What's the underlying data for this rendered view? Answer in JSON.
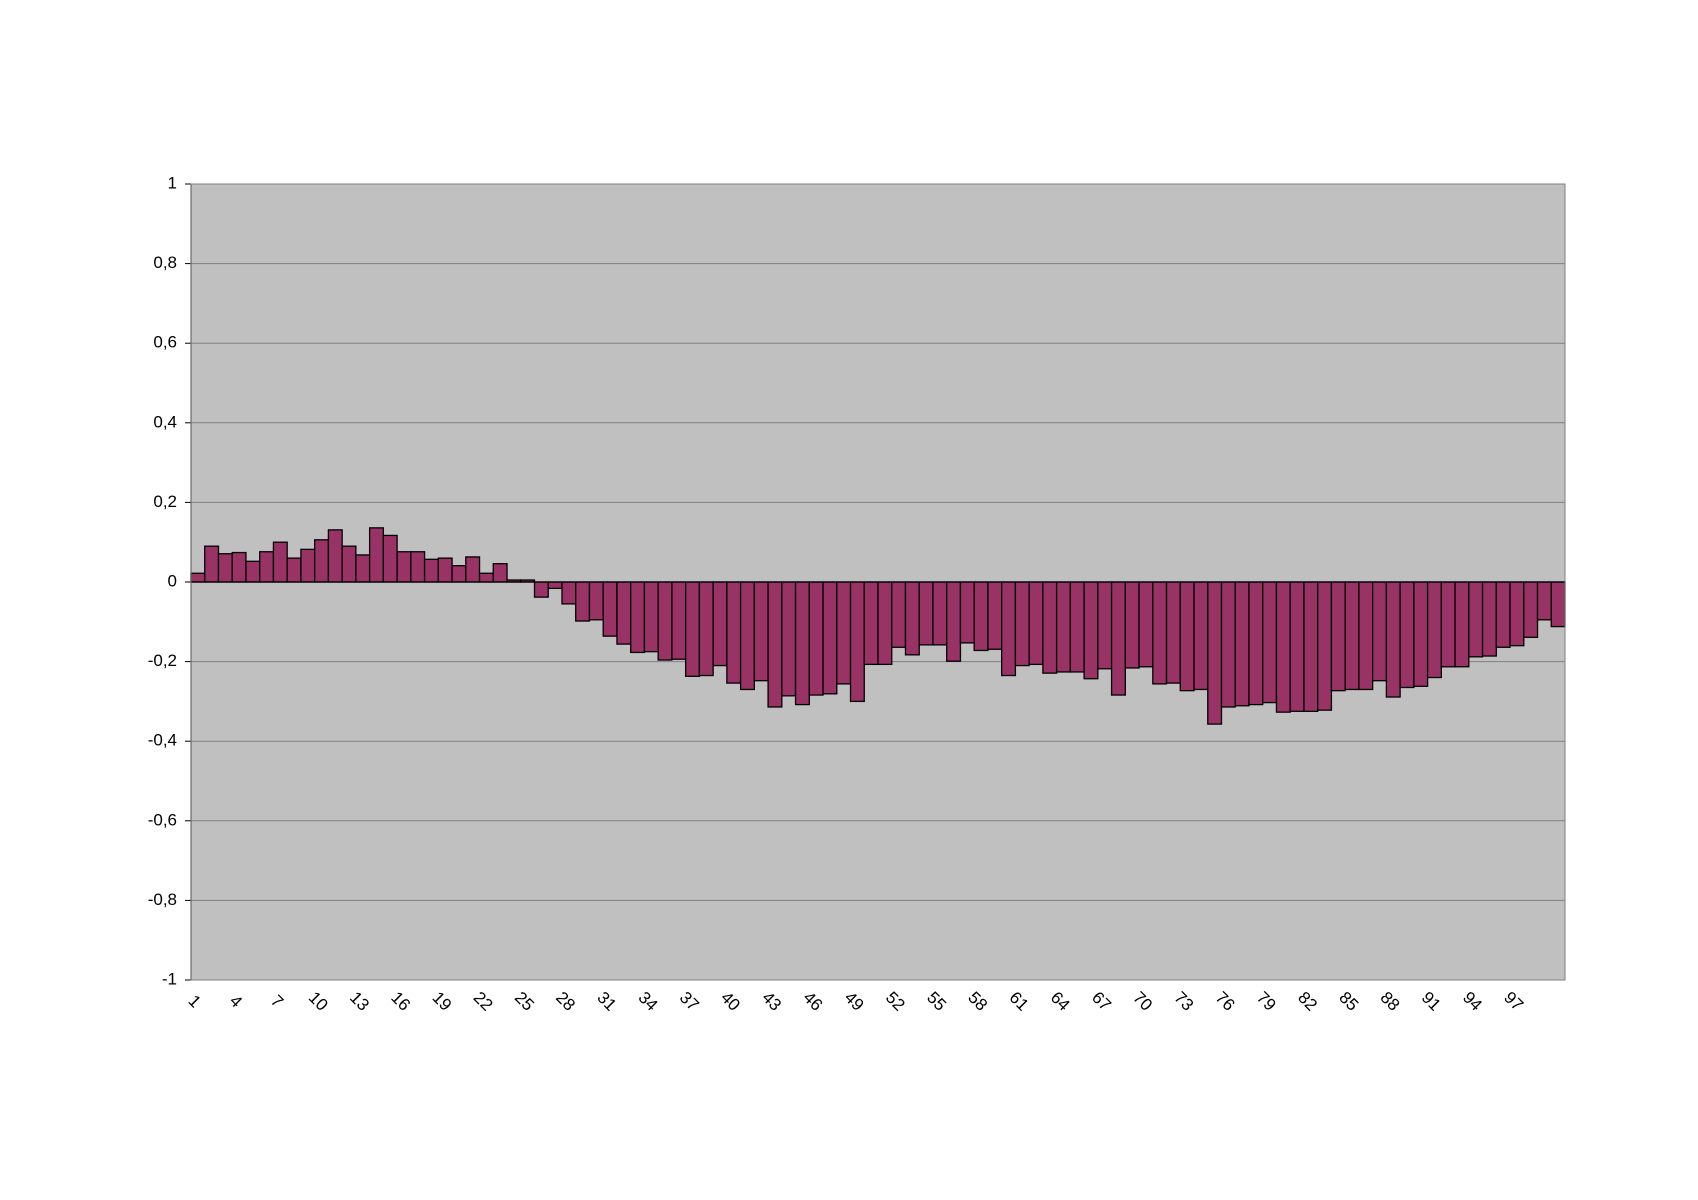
{
  "chart_data": {
    "type": "bar",
    "categories": [
      "1",
      null,
      null,
      "4",
      null,
      null,
      "7",
      null,
      null,
      "10",
      null,
      null,
      "13",
      null,
      null,
      "16",
      null,
      null,
      "19",
      null,
      null,
      "22",
      null,
      null,
      "25",
      null,
      null,
      "28",
      null,
      null,
      "31",
      null,
      null,
      "34",
      null,
      null,
      "37",
      null,
      null,
      "40",
      null,
      null,
      "43",
      null,
      null,
      "46",
      null,
      null,
      "49",
      null,
      null,
      "52",
      null,
      null,
      "55",
      null,
      null,
      "58",
      null,
      null,
      "61",
      null,
      null,
      "64",
      null,
      null,
      "67",
      null,
      null,
      "70",
      null,
      null,
      "73",
      null,
      null,
      "76",
      null,
      null,
      "79",
      null,
      null,
      "82",
      null,
      null,
      "85",
      null,
      null,
      "88",
      null,
      null,
      "91",
      null,
      null,
      "94",
      null,
      null,
      "97",
      null,
      null,
      null
    ],
    "values": [
      0.022,
      0.09,
      0.071,
      0.074,
      0.052,
      0.076,
      0.1,
      0.06,
      0.082,
      0.106,
      0.131,
      0.09,
      0.068,
      0.136,
      0.117,
      0.076,
      0.076,
      0.057,
      0.06,
      0.041,
      0.063,
      0.022,
      0.046,
      0.005,
      0.005,
      -0.038,
      -0.016,
      -0.055,
      -0.098,
      -0.095,
      -0.136,
      -0.156,
      -0.177,
      -0.175,
      -0.196,
      -0.194,
      -0.237,
      -0.235,
      -0.21,
      -0.254,
      -0.27,
      -0.248,
      -0.314,
      -0.286,
      -0.308,
      -0.284,
      -0.281,
      -0.256,
      -0.3,
      -0.207,
      -0.207,
      -0.164,
      -0.183,
      -0.158,
      -0.158,
      -0.199,
      -0.153,
      -0.172,
      -0.169,
      -0.235,
      -0.21,
      -0.207,
      -0.229,
      -0.226,
      -0.226,
      -0.243,
      -0.218,
      -0.284,
      -0.216,
      -0.213,
      -0.256,
      -0.254,
      -0.273,
      -0.27,
      -0.357,
      -0.314,
      -0.311,
      -0.308,
      -0.303,
      -0.327,
      -0.325,
      -0.325,
      -0.322,
      -0.273,
      -0.27,
      -0.27,
      -0.248,
      -0.289,
      -0.265,
      -0.262,
      -0.24,
      -0.213,
      -0.213,
      -0.188,
      -0.186,
      -0.164,
      -0.16,
      -0.139,
      -0.095,
      -0.112
    ],
    "color": "#993366",
    "ylim": [
      -1,
      1
    ],
    "yticks": [
      -1,
      {
        "value": -0.8,
        "label": "-0,8"
      },
      {
        "value": -0.6,
        "label": "-0,6"
      },
      {
        "value": -0.4,
        "label": "-0,4"
      },
      {
        "value": -0.2,
        "label": "-0,2"
      },
      0,
      {
        "value": 0.2,
        "label": "0,2"
      },
      {
        "value": 0.4,
        "label": "0,4"
      },
      {
        "value": 0.6,
        "label": "0,6"
      },
      {
        "value": 0.8,
        "label": "0,8"
      },
      1
    ],
    "grid": true
  }
}
